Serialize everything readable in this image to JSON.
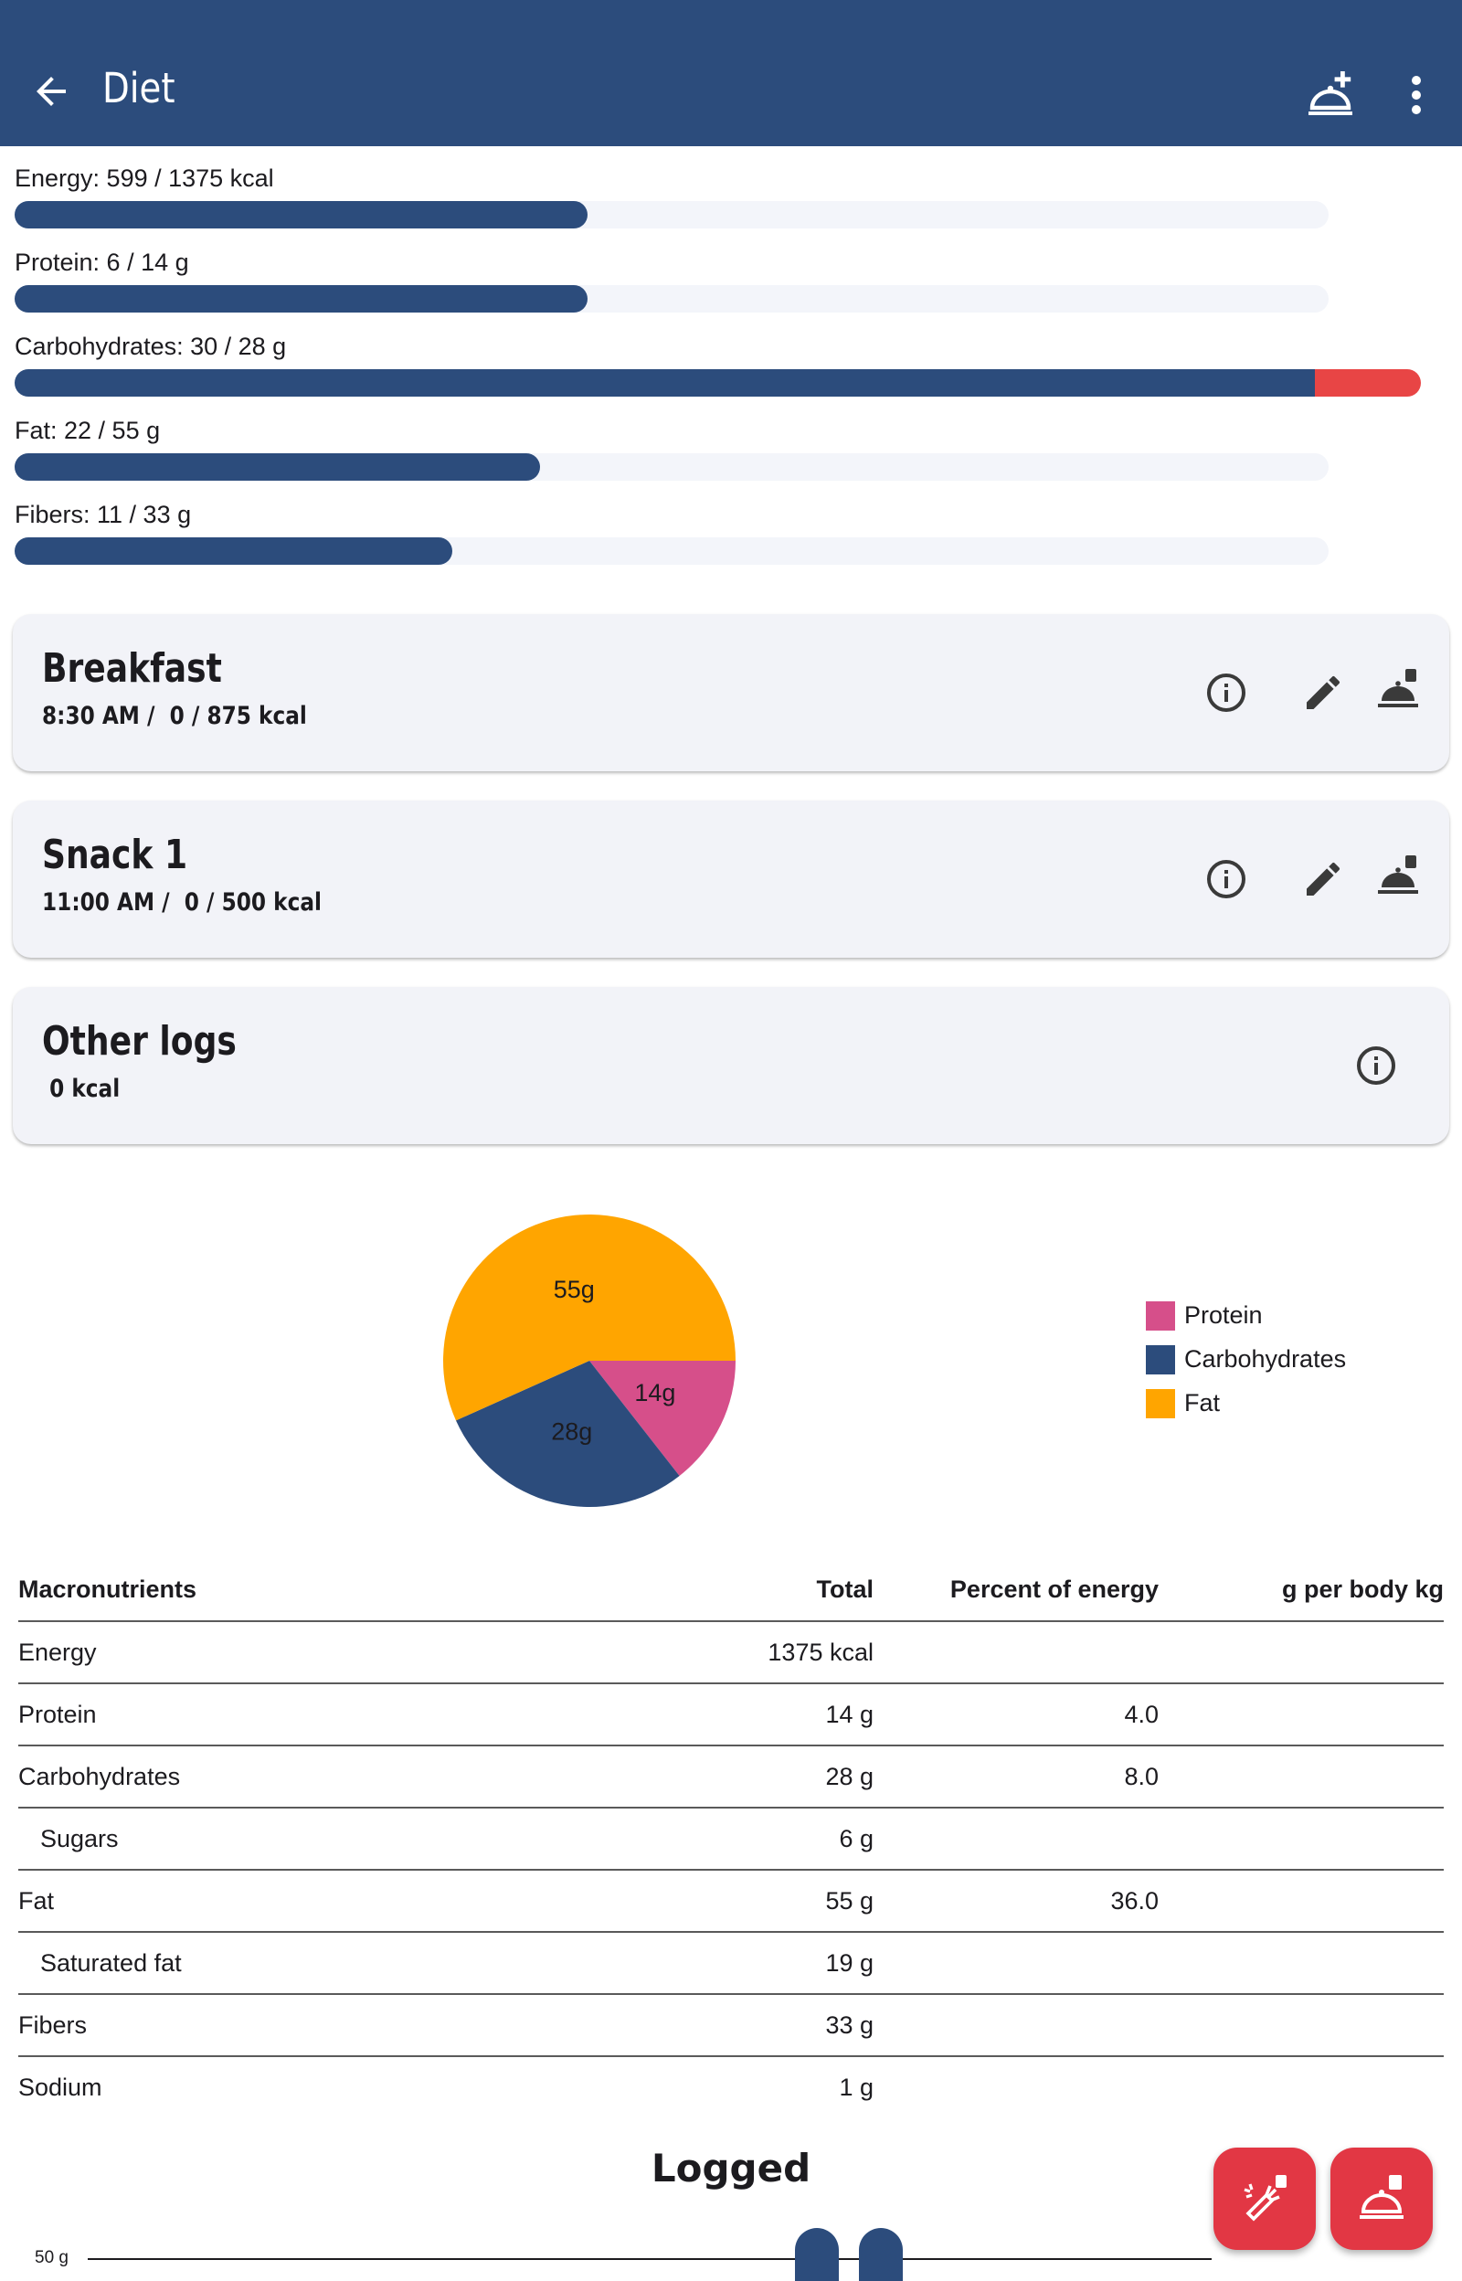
{
  "app_bar": {
    "title": "Diet",
    "icons": [
      "arrow-back-icon",
      "add-meal-icon",
      "more-vert-icon"
    ]
  },
  "colors": {
    "primary": "#2c4c7c",
    "over_target": "#e84545",
    "fab": "#e23744",
    "protein": "#d64f8a",
    "carbohydrates": "#2c4c7c",
    "fat": "#ffa500"
  },
  "progress": [
    {
      "label": "Energy: 599 / 1375 kcal",
      "fraction": 0.436,
      "over_fraction": 0
    },
    {
      "label": "Protein: 6 / 14 g",
      "fraction": 0.436,
      "over_fraction": 0
    },
    {
      "label": "Carbohydrates: 30 / 28 g",
      "fraction": 1.0,
      "over_fraction": 0.07
    },
    {
      "label": "Fat: 22 / 55 g",
      "fraction": 0.4,
      "over_fraction": 0
    },
    {
      "label": "Fibers: 11 / 33 g",
      "fraction": 0.333,
      "over_fraction": 0
    }
  ],
  "meals": [
    {
      "name": "Breakfast",
      "subtitle": "8:30 AM /  0 / 875 kcal"
    },
    {
      "name": "Snack 1",
      "subtitle": "11:00 AM /  0 / 500 kcal"
    },
    {
      "name": "Other logs",
      "subtitle": " 0 kcal"
    }
  ],
  "chart_data": {
    "type": "pie",
    "categories": [
      "Protein",
      "Carbohydrates",
      "Fat"
    ],
    "values": [
      14,
      28,
      55
    ],
    "slice_labels": [
      "14g",
      "28g",
      "55g"
    ],
    "legend_position": "right"
  },
  "table": {
    "headers": [
      "Macronutrients",
      "Total",
      "Percent of energy",
      "g per body kg"
    ],
    "rows": [
      {
        "name": "Energy",
        "total": "1375 kcal",
        "percent": "",
        "per_kg": "",
        "indent": false
      },
      {
        "name": "Protein",
        "total": "14 g",
        "percent": "4.0",
        "per_kg": "",
        "indent": false
      },
      {
        "name": "Carbohydrates",
        "total": "28 g",
        "percent": "8.0",
        "per_kg": "",
        "indent": false
      },
      {
        "name": "Sugars",
        "total": "6 g",
        "percent": "",
        "per_kg": "",
        "indent": true
      },
      {
        "name": "Fat",
        "total": "55 g",
        "percent": "36.0",
        "per_kg": "",
        "indent": false
      },
      {
        "name": "Saturated fat",
        "total": "19 g",
        "percent": "",
        "per_kg": "",
        "indent": true
      },
      {
        "name": "Fibers",
        "total": "33 g",
        "percent": "",
        "per_kg": "",
        "indent": false
      },
      {
        "name": "Sodium",
        "total": "1 g",
        "percent": "",
        "per_kg": "",
        "indent": false
      }
    ]
  },
  "logged": {
    "title": "Logged",
    "axis_label": "50 g"
  },
  "fabs": [
    "log-food-icon",
    "log-meal-icon"
  ]
}
